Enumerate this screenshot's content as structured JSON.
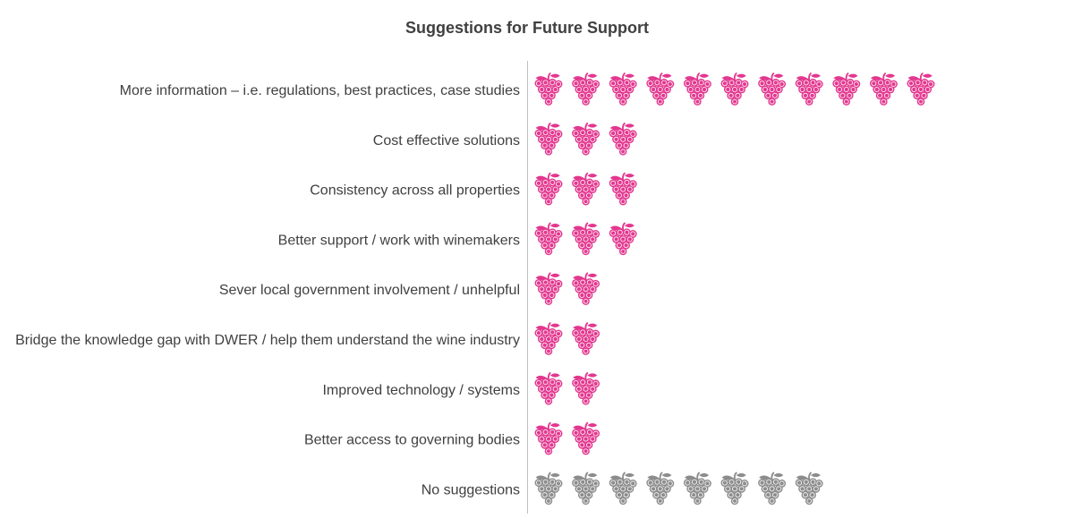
{
  "chart_data": {
    "type": "bar",
    "title": "Suggestions for Future Support",
    "xlabel": "",
    "ylabel": "",
    "categories": [
      "More information – i.e. regulations, best practices, case studies",
      "Cost effective solutions",
      "Consistency across all properties",
      "Better support / work with winemakers",
      "Sever local government involvement / unhelpful",
      "Bridge the knowledge gap with DWER / help them understand the wine industry",
      "Improved technology / systems",
      "Better access to governing bodies",
      "No suggestions"
    ],
    "values": [
      11,
      3,
      3,
      3,
      2,
      2,
      2,
      2,
      8
    ],
    "colors": [
      "#e3378f",
      "#e3378f",
      "#e3378f",
      "#e3378f",
      "#e3378f",
      "#e3378f",
      "#e3378f",
      "#e3378f",
      "#8c8c8c"
    ],
    "icon": "grape-icon",
    "grid": false,
    "legend": "none"
  }
}
